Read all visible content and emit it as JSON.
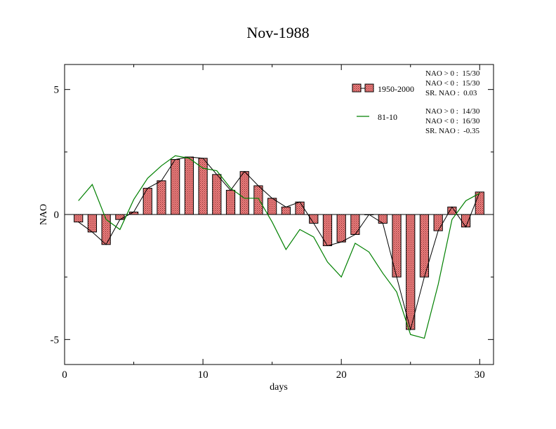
{
  "chart_data": {
    "type": "bar",
    "title": "Nov-1988",
    "xlabel": "days",
    "ylabel": "NAO",
    "xlim": [
      0,
      31
    ],
    "ylim": [
      -6,
      6
    ],
    "x_ticks": [
      0,
      10,
      20,
      30
    ],
    "y_ticks": [
      -5,
      0,
      5
    ],
    "grid": false,
    "legend_position": "top-right",
    "x": [
      1,
      2,
      3,
      4,
      5,
      6,
      7,
      8,
      9,
      10,
      11,
      12,
      13,
      14,
      15,
      16,
      17,
      18,
      19,
      20,
      21,
      22,
      23,
      24,
      25,
      26,
      27,
      28,
      29,
      30
    ],
    "series": [
      {
        "name": "1950-2000",
        "kind": "bar",
        "fill_color": "#f08080",
        "values": [
          -0.3,
          -0.7,
          -1.2,
          -0.2,
          0.1,
          1.05,
          1.35,
          2.2,
          2.3,
          2.25,
          1.6,
          0.97,
          1.72,
          1.15,
          0.65,
          0.3,
          0.5,
          -0.35,
          -1.25,
          -1.1,
          -0.8,
          0.0,
          -0.35,
          -2.5,
          -4.6,
          -2.5,
          -0.65,
          0.3,
          -0.5,
          0.9
        ]
      },
      {
        "name": "81-10",
        "kind": "line",
        "color": "#008000",
        "values": [
          0.55,
          1.2,
          -0.2,
          -0.6,
          0.6,
          1.45,
          1.95,
          2.35,
          2.25,
          1.85,
          1.75,
          1.05,
          0.65,
          0.65,
          -0.3,
          -1.4,
          -0.6,
          -0.9,
          -1.9,
          -2.5,
          -1.15,
          -1.5,
          -2.35,
          -3.1,
          -4.8,
          -4.95,
          -2.8,
          -0.2,
          0.55,
          0.85
        ]
      }
    ],
    "stats": [
      {
        "series": "1950-2000",
        "lines": [
          "NAO > 0 :  15/30",
          "NAO < 0 :  15/30",
          "SR. NAO :  0.03"
        ]
      },
      {
        "series": "81-10",
        "lines": [
          "NAO > 0 :  14/30",
          "NAO < 0 :  16/30",
          "SR. NAO :  -0.35"
        ]
      }
    ]
  }
}
